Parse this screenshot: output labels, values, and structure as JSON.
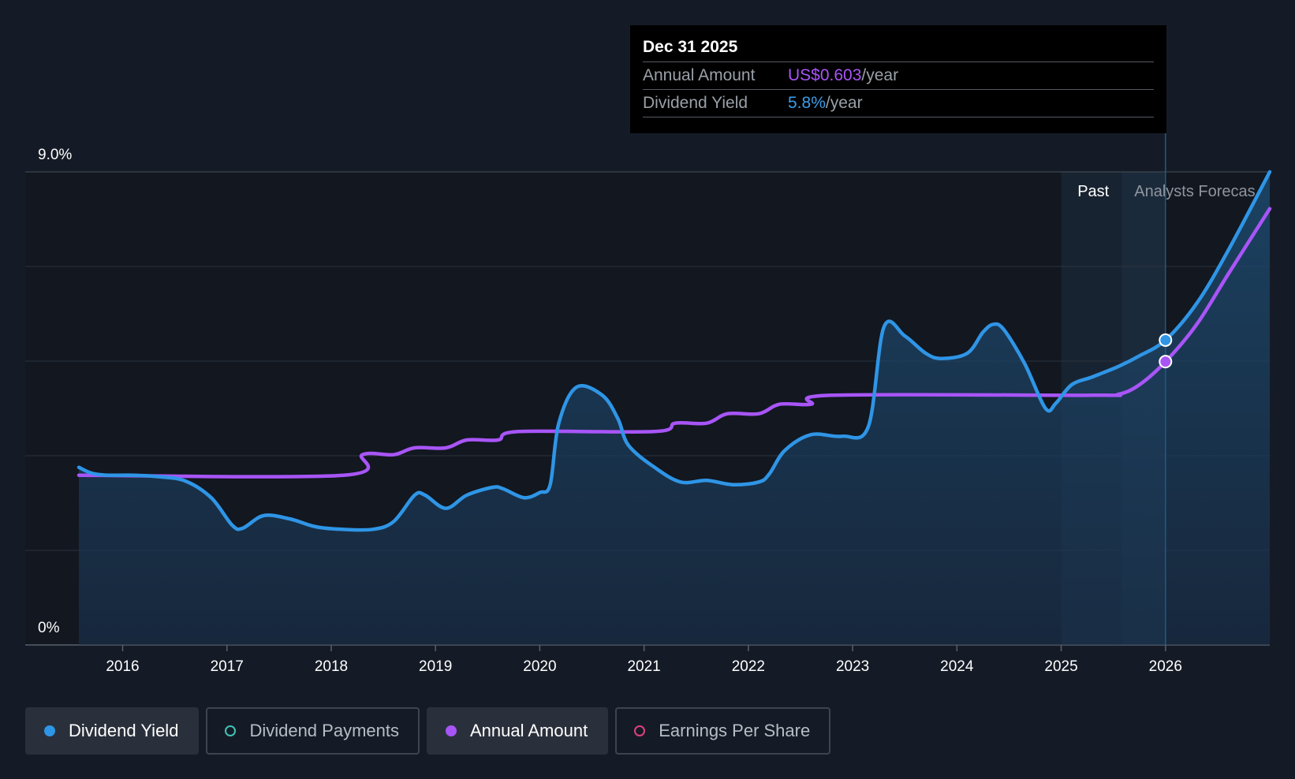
{
  "chart_data": {
    "type": "line",
    "y_tick_labels": [
      "9.0%",
      "0%"
    ],
    "ylim": [
      0,
      9
    ],
    "x_tick_labels": [
      "2016",
      "2017",
      "2018",
      "2019",
      "2020",
      "2021",
      "2022",
      "2023",
      "2024",
      "2025",
      "2026"
    ],
    "xlim": [
      2015.55,
      2027.0
    ],
    "grid": true,
    "regions": {
      "past_label": "Past",
      "forecast_label": "Analysts Forecas"
    },
    "series": [
      {
        "name": "Dividend Yield",
        "color": "#2f95e6",
        "x": [
          2015.58,
          2015.7,
          2015.85,
          2016.1,
          2016.35,
          2016.6,
          2016.85,
          2017.05,
          2017.15,
          2017.35,
          2017.6,
          2017.85,
          2018.1,
          2018.4,
          2018.6,
          2018.8,
          2018.9,
          2019.1,
          2019.3,
          2019.55,
          2019.65,
          2019.85,
          2020.0,
          2020.1,
          2020.18,
          2020.35,
          2020.6,
          2020.75,
          2020.85,
          2021.1,
          2021.35,
          2021.6,
          2021.85,
          2022.1,
          2022.2,
          2022.35,
          2022.6,
          2022.9,
          2023.15,
          2023.3,
          2023.5,
          2023.7,
          2023.85,
          2024.1,
          2024.25,
          2024.35,
          2024.45,
          2024.65,
          2024.85,
          2024.95,
          2025.1,
          2025.3,
          2025.55,
          2025.75,
          2026.0,
          2026.3,
          2026.6,
          2027.0
        ],
        "y": [
          3.38,
          3.27,
          3.23,
          3.23,
          3.2,
          3.12,
          2.8,
          2.28,
          2.22,
          2.46,
          2.4,
          2.25,
          2.2,
          2.2,
          2.35,
          2.85,
          2.85,
          2.6,
          2.85,
          3.0,
          2.97,
          2.8,
          2.9,
          3.05,
          4.2,
          4.9,
          4.75,
          4.3,
          3.8,
          3.38,
          3.1,
          3.13,
          3.05,
          3.1,
          3.25,
          3.7,
          4.0,
          3.97,
          4.15,
          6.05,
          5.88,
          5.55,
          5.45,
          5.55,
          5.95,
          6.1,
          6.0,
          5.35,
          4.5,
          4.6,
          4.95,
          5.1,
          5.3,
          5.5,
          5.8,
          6.5,
          7.5,
          9.0
        ]
      },
      {
        "name": "Annual Amount",
        "color": "#a855f7",
        "x": [
          2015.58,
          2018.12,
          2018.3,
          2018.6,
          2018.8,
          2019.1,
          2019.3,
          2019.6,
          2019.8,
          2021.1,
          2021.3,
          2021.6,
          2021.8,
          2022.1,
          2022.3,
          2022.6,
          2022.8,
          2025.3,
          2025.55,
          2025.75,
          2026.0,
          2026.3,
          2026.6,
          2027.0
        ],
        "y": [
          3.23,
          3.23,
          3.62,
          3.62,
          3.75,
          3.75,
          3.9,
          3.9,
          4.06,
          4.06,
          4.22,
          4.22,
          4.4,
          4.4,
          4.58,
          4.58,
          4.75,
          4.75,
          4.77,
          4.95,
          5.39,
          6.1,
          7.05,
          8.3
        ]
      }
    ],
    "tooltip": {
      "date": "Dec 31 2025",
      "rows": [
        {
          "label": "Annual Amount",
          "value": "US$0.603",
          "unit": "/year"
        },
        {
          "label": "Dividend Yield",
          "value": "5.8%",
          "unit": "/year"
        }
      ],
      "x": 2026.0
    }
  },
  "legend": [
    {
      "label": "Dividend Yield",
      "color": "#2f95e6",
      "active": true,
      "hollow": false
    },
    {
      "label": "Dividend Payments",
      "color": "#40c3b5",
      "active": false,
      "hollow": true
    },
    {
      "label": "Annual Amount",
      "color": "#a855f7",
      "active": true,
      "hollow": false
    },
    {
      "label": "Earnings Per Share",
      "color": "#e0407d",
      "active": false,
      "hollow": true
    }
  ]
}
